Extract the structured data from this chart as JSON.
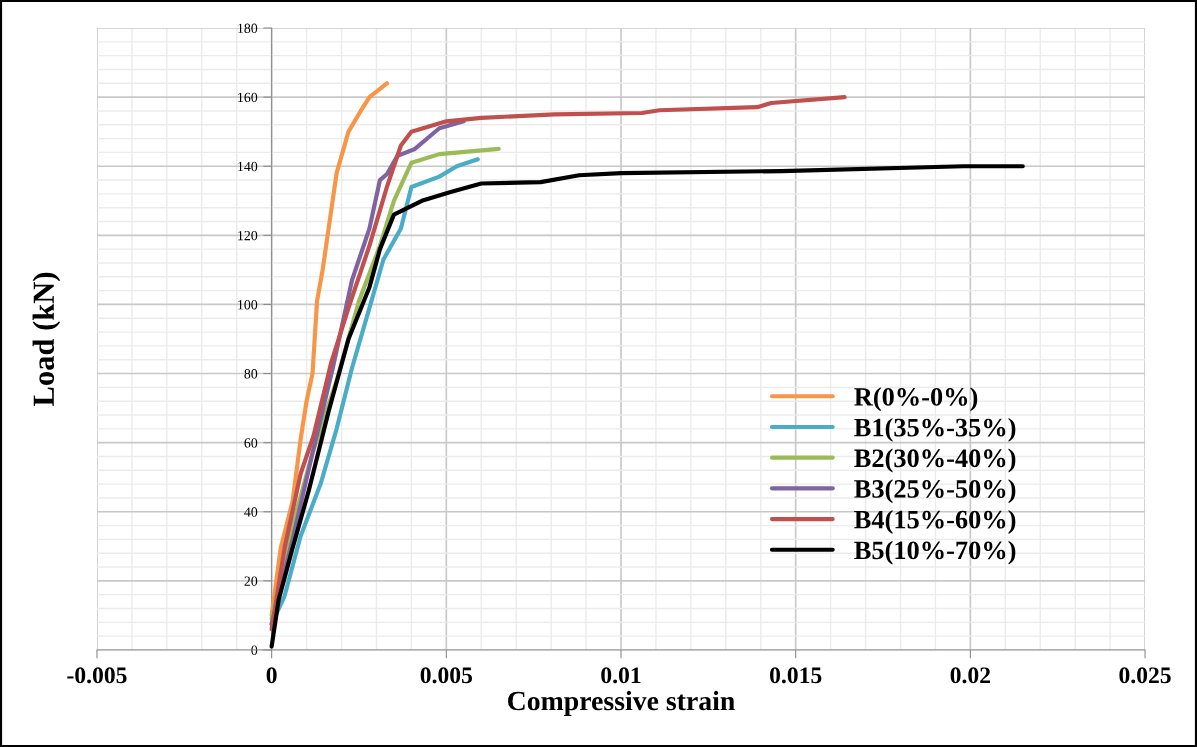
{
  "chart_data": {
    "type": "line",
    "xlabel": "Compressive strain",
    "ylabel": "Load (kN)",
    "xlim": [
      -0.005,
      0.025
    ],
    "xticks": [
      -0.005,
      0,
      0.005,
      0.01,
      0.015,
      0.02,
      0.025
    ],
    "ylim": [
      0,
      180
    ],
    "yticks": [
      0,
      20,
      40,
      60,
      80,
      100,
      120,
      140,
      160,
      180
    ],
    "grid": true,
    "legend": "right",
    "marker": "none",
    "line_style": "solid",
    "series": [
      {
        "name": "R(0%-0%)",
        "color": "#f79646",
        "x": [
          0,
          0.00026,
          0.0006,
          0.00083,
          0.001,
          0.00117,
          0.0013,
          0.00146,
          0.00186,
          0.0022,
          0.00255,
          0.0028,
          0.0033
        ],
        "values": [
          10,
          29.5,
          43,
          61,
          72,
          80,
          101,
          110,
          138,
          150,
          156,
          160,
          164
        ]
      },
      {
        "name": "B1(35%-35%)",
        "color": "#4bacc6",
        "x": [
          0,
          0.00037,
          0.00083,
          0.0014,
          0.00186,
          0.0023,
          0.0028,
          0.0032,
          0.0037,
          0.004,
          0.0048,
          0.0053,
          0.0056,
          0.0059
        ],
        "values": [
          7.5,
          15.6,
          33,
          48,
          64,
          81.6,
          99,
          113,
          122,
          134,
          137,
          140,
          141,
          142
        ]
      },
      {
        "name": "B2(30%-40%)",
        "color": "#9bbb59",
        "x": [
          0,
          0.0006,
          0.00117,
          0.00186,
          0.0025,
          0.0031,
          0.0035,
          0.0038,
          0.004,
          0.0048,
          0.0065
        ],
        "values": [
          9,
          36,
          57,
          78,
          101,
          117,
          130,
          136.6,
          141,
          143.5,
          145
        ]
      },
      {
        "name": "B3(25%-50%)",
        "color": "#8064a2",
        "x": [
          0,
          0.0006,
          0.00117,
          0.00175,
          0.0023,
          0.0028,
          0.0031,
          0.0033,
          0.0036,
          0.0041,
          0.0048,
          0.0055
        ],
        "values": [
          7.5,
          32,
          57,
          81.6,
          107,
          122,
          136,
          137.7,
          143,
          145,
          151,
          153
        ]
      },
      {
        "name": "B4(15%-60%)",
        "color": "#c0504d",
        "x": [
          0,
          0.00037,
          0.00083,
          0.0012,
          0.0017,
          0.0022,
          0.0028,
          0.0033,
          0.0037,
          0.004,
          0.005,
          0.006,
          0.0081,
          0.0106,
          0.0111,
          0.0139,
          0.0143,
          0.0164
        ],
        "values": [
          6,
          29.5,
          51,
          62,
          83,
          99,
          117,
          134,
          146,
          150,
          153,
          154,
          155,
          155.4,
          156.2,
          157.1,
          158.3,
          160
        ]
      },
      {
        "name": "B5(10%-70%)",
        "color": "#000000",
        "x": [
          0,
          0.0002,
          0.0006,
          0.00106,
          0.00163,
          0.0022,
          0.0028,
          0.0031,
          0.0035,
          0.0043,
          0.0051,
          0.006,
          0.0077,
          0.0088,
          0.01,
          0.0146,
          0.0198,
          0.0215
        ],
        "values": [
          1,
          14.5,
          29.5,
          46,
          69,
          90,
          105,
          116,
          126,
          130,
          132.5,
          135,
          135.4,
          137.4,
          138,
          138.6,
          140,
          140
        ]
      }
    ]
  }
}
